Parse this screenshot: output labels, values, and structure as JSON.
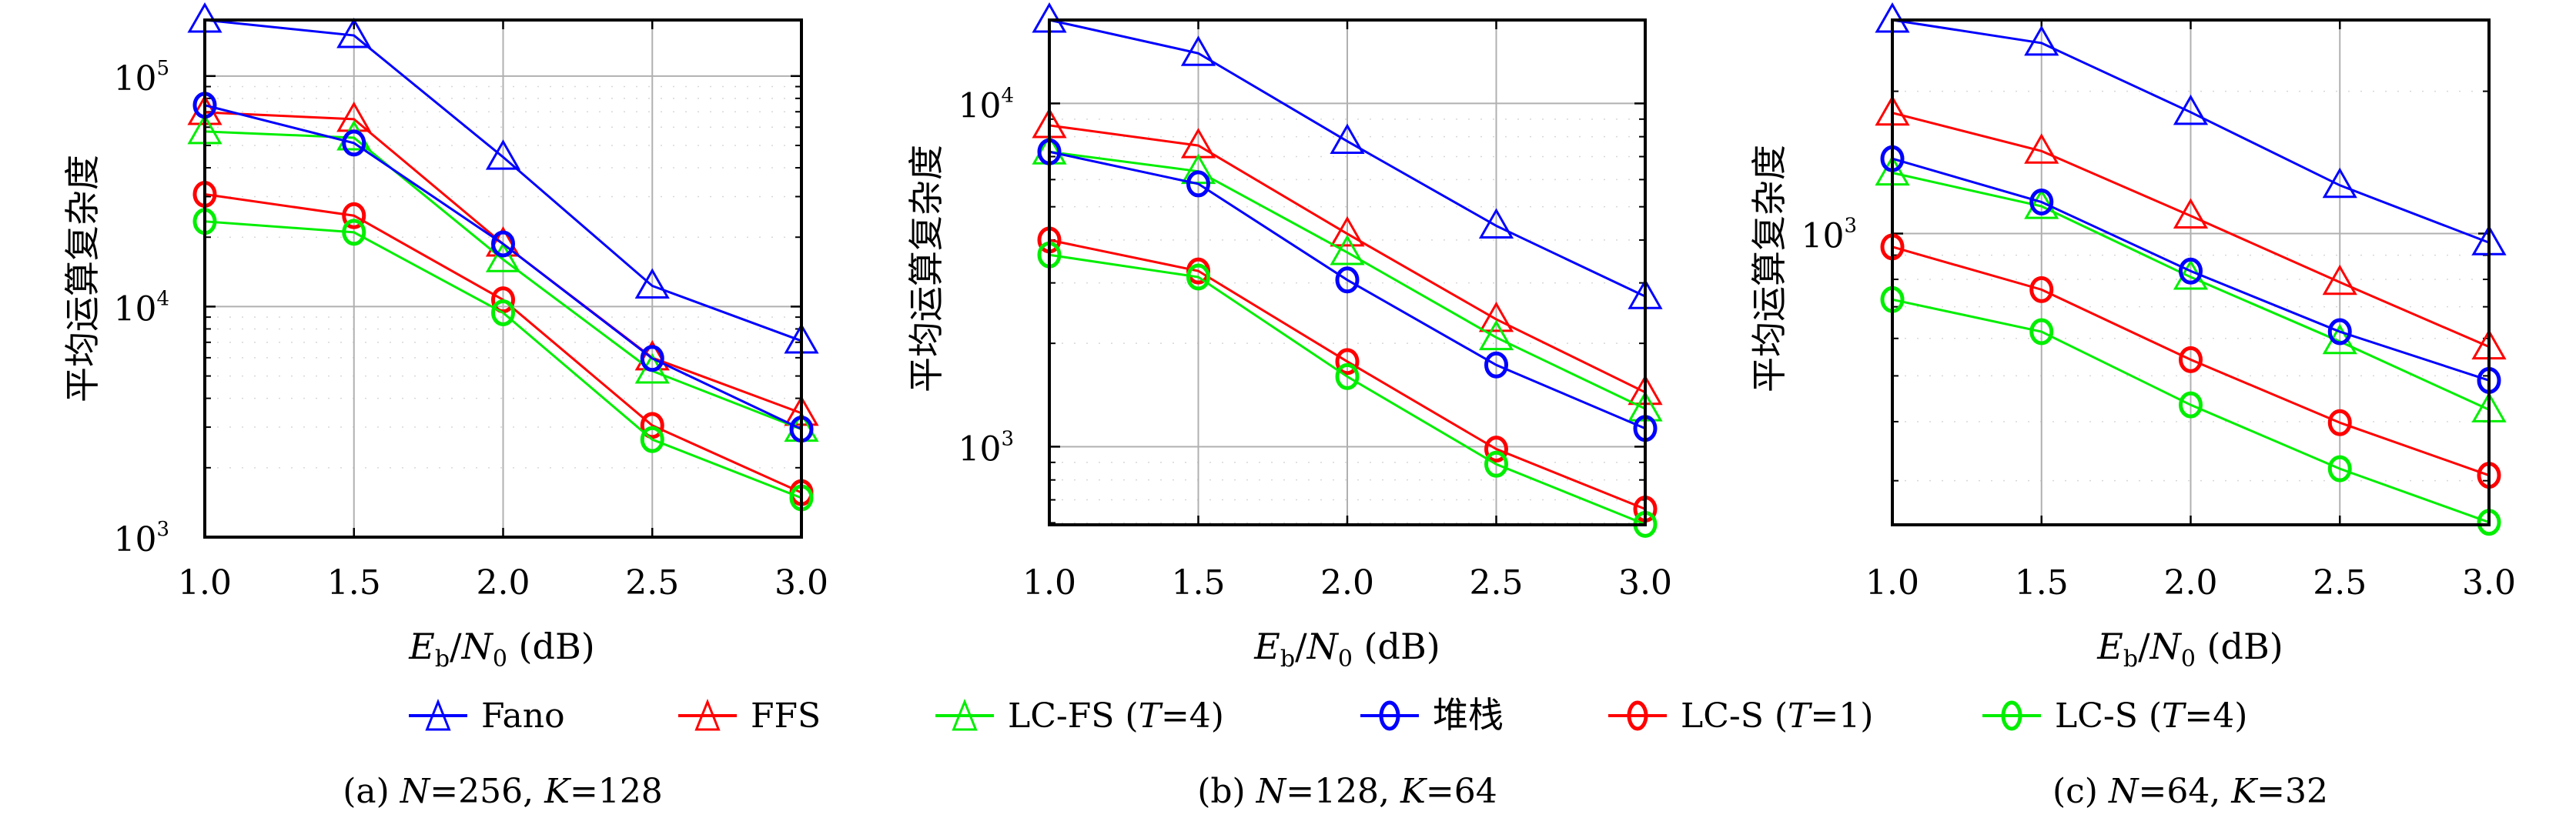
{
  "figure": {
    "ylabel": "平均运算复杂度",
    "xlabel_main": "E",
    "xlabel_sub1": "b",
    "xlabel_slash": "/",
    "xlabel_main2": "N",
    "xlabel_sub2": "0",
    "xlabel_unit": " (dB)"
  },
  "legend": [
    {
      "label": "Fano",
      "color": "#0000ff",
      "marker": "triangle"
    },
    {
      "label": "FFS",
      "color": "#ff0000",
      "marker": "triangle"
    },
    {
      "label": "LC-FS (T=4)",
      "color": "#00ee00",
      "marker": "triangle"
    },
    {
      "label": "堆栈",
      "color": "#0000ff",
      "marker": "circle"
    },
    {
      "label": "LC-S (T=1)",
      "color": "#ff0000",
      "marker": "circle"
    },
    {
      "label": "LC-S (T=4)",
      "color": "#00ee00",
      "marker": "circle"
    }
  ],
  "chart_data": [
    {
      "type": "line",
      "title": "(a) N=256, K=128",
      "caption_prefix": "(a) ",
      "caption_N": "256",
      "caption_K": "128",
      "xlabel": "Eb/N0 (dB)",
      "ylabel": "平均运算复杂度",
      "yscale": "log",
      "grid": true,
      "x": [
        1.0,
        1.5,
        2.0,
        2.5,
        3.0
      ],
      "xticks": [
        "1.0",
        "1.5",
        "2.0",
        "2.5",
        "3.0"
      ],
      "yticks": [
        {
          "base": "10",
          "exp": "3",
          "value": 1000
        },
        {
          "base": "10",
          "exp": "4",
          "value": 10000
        },
        {
          "base": "10",
          "exp": "5",
          "value": 100000
        }
      ],
      "ylim": [
        1000,
        175000
      ],
      "series": [
        {
          "name": "Fano",
          "values": [
            175000,
            150000,
            44500,
            12300,
            7100
          ]
        },
        {
          "name": "FFS",
          "values": [
            69600,
            65000,
            18700,
            6000,
            3450
          ]
        },
        {
          "name": "LC-FS (T=4)",
          "values": [
            57500,
            54000,
            16000,
            5260,
            2940
          ]
        },
        {
          "name": "堆栈",
          "values": [
            74700,
            51200,
            18700,
            5960,
            2940
          ]
        },
        {
          "name": "LC-S (T=1)",
          "values": [
            30700,
            24800,
            10700,
            3050,
            1560
          ]
        },
        {
          "name": "LC-S (T=4)",
          "values": [
            23400,
            21000,
            9400,
            2650,
            1480
          ]
        }
      ]
    },
    {
      "type": "line",
      "title": "(b) N=128, K=64",
      "caption_prefix": "(b) ",
      "caption_N": "128",
      "caption_K": "64",
      "xlabel": "Eb/N0 (dB)",
      "ylabel": "平均运算复杂度",
      "yscale": "log",
      "grid": true,
      "x": [
        1.0,
        1.5,
        2.0,
        2.5,
        3.0
      ],
      "xticks": [
        "1.0",
        "1.5",
        "2.0",
        "2.5",
        "3.0"
      ],
      "yticks": [
        {
          "base": "10",
          "exp": "3",
          "value": 1000
        },
        {
          "base": "10",
          "exp": "4",
          "value": 10000
        }
      ],
      "ylim": [
        592,
        17500
      ],
      "series": [
        {
          "name": "Fano",
          "values": [
            17500,
            14000,
            7760,
            4400,
            2740
          ]
        },
        {
          "name": "FFS",
          "values": [
            8630,
            7540,
            4170,
            2350,
            1440
          ]
        },
        {
          "name": "LC-FS (T=4)",
          "values": [
            7230,
            6340,
            3680,
            2080,
            1290
          ]
        },
        {
          "name": "堆栈",
          "values": [
            7230,
            5830,
            3060,
            1730,
            1130
          ]
        },
        {
          "name": "LC-S (T=1)",
          "values": [
            4000,
            3250,
            1770,
            984,
            658
          ]
        },
        {
          "name": "LC-S (T=4)",
          "values": [
            3620,
            3120,
            1600,
            889,
            594
          ]
        }
      ]
    },
    {
      "type": "line",
      "title": "(c) N=64, K=32",
      "caption_prefix": "(c) ",
      "caption_N": "64",
      "caption_K": "32",
      "xlabel": "Eb/N0 (dB)",
      "ylabel": "平均运算复杂度",
      "yscale": "log",
      "grid": true,
      "x": [
        1.0,
        1.5,
        2.0,
        2.5,
        3.0
      ],
      "xticks": [
        "1.0",
        "1.5",
        "2.0",
        "2.5",
        "3.0"
      ],
      "yticks": [
        {
          "base": "10",
          "exp": "3",
          "value": 1000
        }
      ],
      "ylim": [
        242,
        2830
      ],
      "series": [
        {
          "name": "Fano",
          "values": [
            2830,
            2530,
            1806,
            1265,
            957
          ]
        },
        {
          "name": "FFS",
          "values": [
            1800,
            1495,
            1090,
            789,
            576
          ]
        },
        {
          "name": "LC-FS (T=4)",
          "values": [
            1344,
            1142,
            809,
            591,
            424
          ]
        },
        {
          "name": "堆栈",
          "values": [
            1440,
            1166,
            833,
            620,
            489
          ]
        },
        {
          "name": "LC-S (T=1)",
          "values": [
            937,
            761,
            541,
            398,
            308
          ]
        },
        {
          "name": "LC-S (T=4)",
          "values": [
            725,
            620,
            434,
            318,
            245
          ]
        }
      ]
    }
  ]
}
